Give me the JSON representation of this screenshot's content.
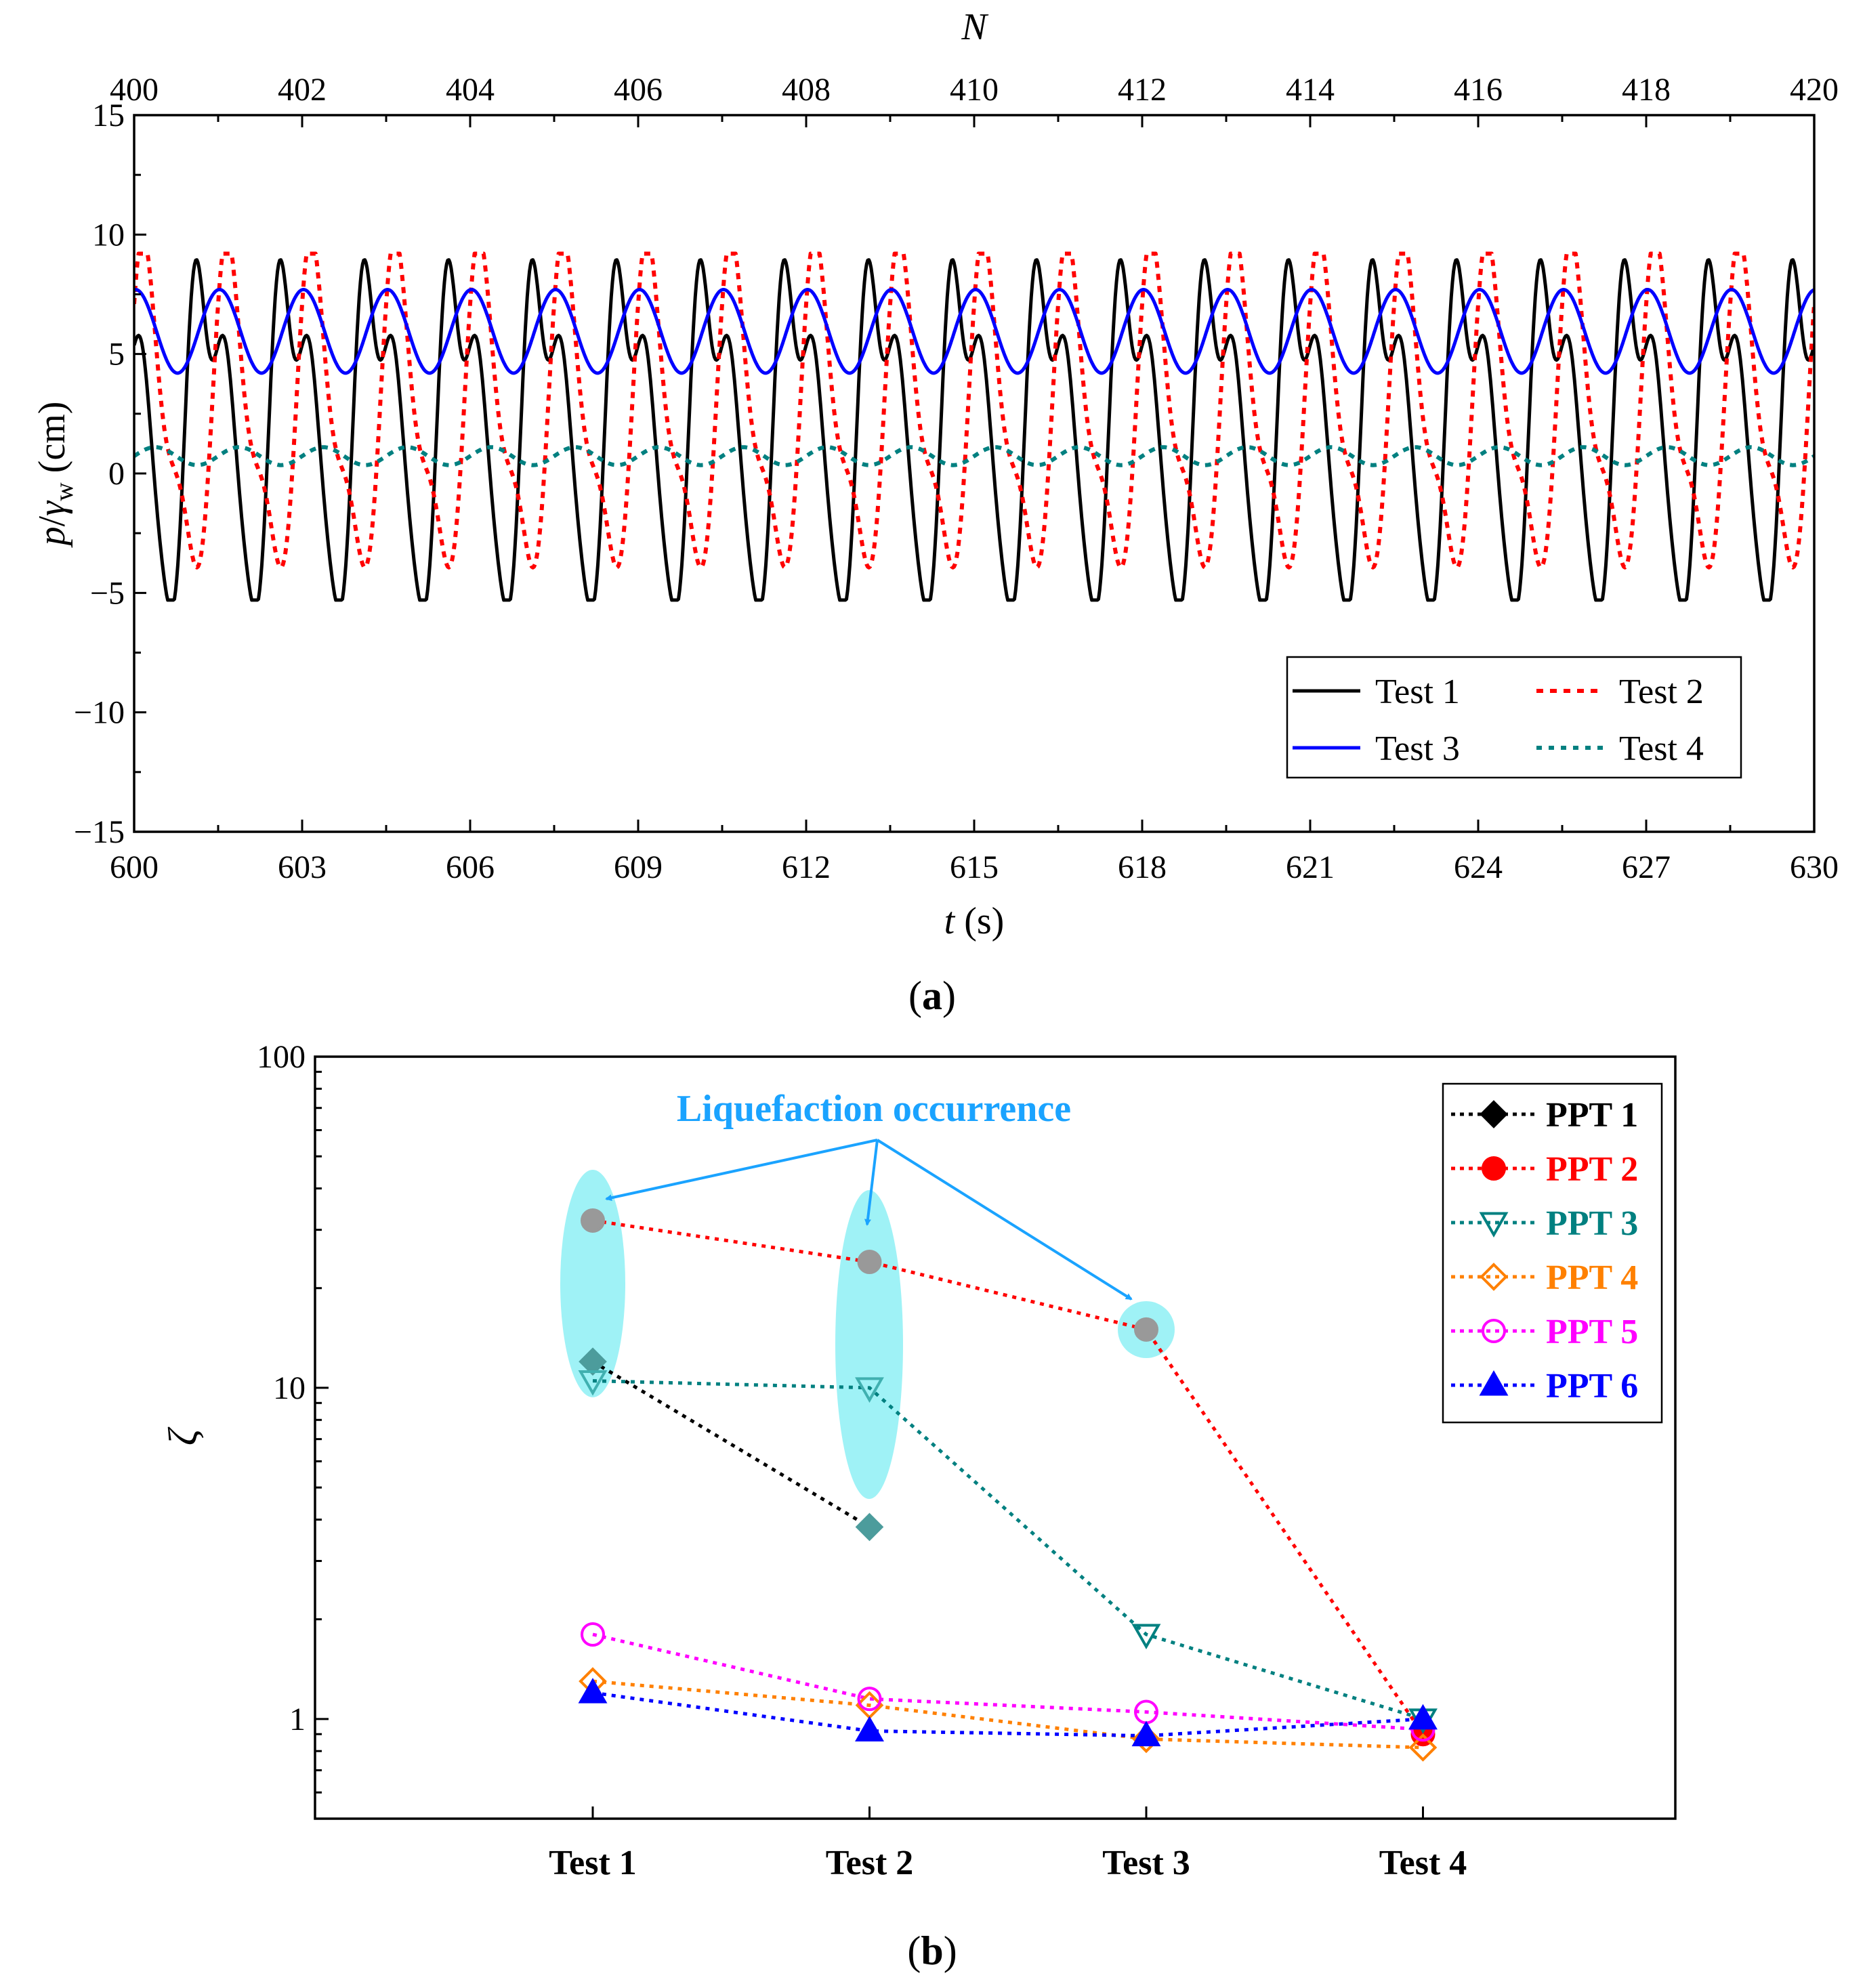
{
  "chart_data": [
    {
      "panel_label": "a",
      "type": "line",
      "xlabel": {
        "var": "t",
        "unit": " (s)"
      },
      "ylabel": {
        "var": "p",
        "sep": "/",
        "gamma": "γ",
        "sub": "w",
        "unit": " (cm)"
      },
      "top_xlabel": "N",
      "xlim": [
        600,
        630
      ],
      "ylim": [
        -15,
        15
      ],
      "xticks": [
        600,
        603,
        606,
        609,
        612,
        615,
        618,
        621,
        624,
        627,
        630
      ],
      "yticks": [
        15,
        10,
        5,
        0,
        -5,
        -10,
        -15
      ],
      "yticklabels": [
        "15",
        "10",
        "5",
        "0",
        "−5",
        "−10",
        "−15"
      ],
      "top_ticks": [
        400,
        402,
        404,
        406,
        408,
        410,
        412,
        414,
        416,
        418,
        420
      ],
      "wave_period_s": 1.5,
      "series": [
        {
          "name": "Test 1",
          "color": "#000000",
          "dash": "solid",
          "mean": 2.2,
          "amp_max": 9.8,
          "amp_min": -5.3,
          "phase_s": 0.55,
          "profile": "double-peak"
        },
        {
          "name": "Test 2",
          "color": "#ff0000",
          "dash": "dotted",
          "mean": 2.3,
          "amp_max": 9.2,
          "amp_min": -4.7,
          "phase_s": 0.15,
          "profile": "sharp"
        },
        {
          "name": "Test 3",
          "color": "#0000ff",
          "dash": "solid",
          "mean": 5.9,
          "amp_max": 7.7,
          "amp_min": 4.2,
          "phase_s": 0.35,
          "profile": "smooth"
        },
        {
          "name": "Test 4",
          "color": "#008080",
          "dash": "dotted",
          "mean": 0.75,
          "amp_max": 1.1,
          "amp_min": 0.35,
          "phase_s": 0.0,
          "profile": "smooth"
        }
      ],
      "legend": [
        "Test 1",
        "Test 2",
        "Test 3",
        "Test 4"
      ]
    },
    {
      "panel_label": "b",
      "type": "scatter",
      "ylabel": "ζ",
      "yscale": "log",
      "ylim": [
        0.5,
        100
      ],
      "yticks": [
        1,
        10,
        100
      ],
      "categories": [
        "Test 1",
        "Test 2",
        "Test 3",
        "Test 4"
      ],
      "series": [
        {
          "name": "PPT 1",
          "color": "#000000",
          "marker": "diamond-filled",
          "values": [
            12.0,
            3.8,
            null,
            null
          ]
        },
        {
          "name": "PPT 2",
          "color": "#ff0000",
          "marker": "circle-filled",
          "values": [
            32.0,
            24.0,
            15.0,
            0.9
          ]
        },
        {
          "name": "PPT 3",
          "color": "#008080",
          "marker": "triangle-down-open",
          "values": [
            10.5,
            10.0,
            1.8,
            1.0
          ]
        },
        {
          "name": "PPT 4",
          "color": "#ff8000",
          "marker": "diamond-open",
          "values": [
            1.3,
            1.1,
            0.87,
            0.82
          ]
        },
        {
          "name": "PPT 5",
          "color": "#ff00ff",
          "marker": "circle-open",
          "values": [
            1.8,
            1.15,
            1.05,
            0.93
          ]
        },
        {
          "name": "PPT 6",
          "color": "#0000ff",
          "marker": "triangle-up-filled",
          "values": [
            1.2,
            0.92,
            0.89,
            1.0
          ]
        }
      ],
      "annotation": {
        "text": "Liquefaction occurrence",
        "color": "#1aa3ff",
        "highlight": "#8ef0f5",
        "targets": [
          "Test 1",
          "Test 2",
          "Test 3"
        ]
      }
    }
  ]
}
